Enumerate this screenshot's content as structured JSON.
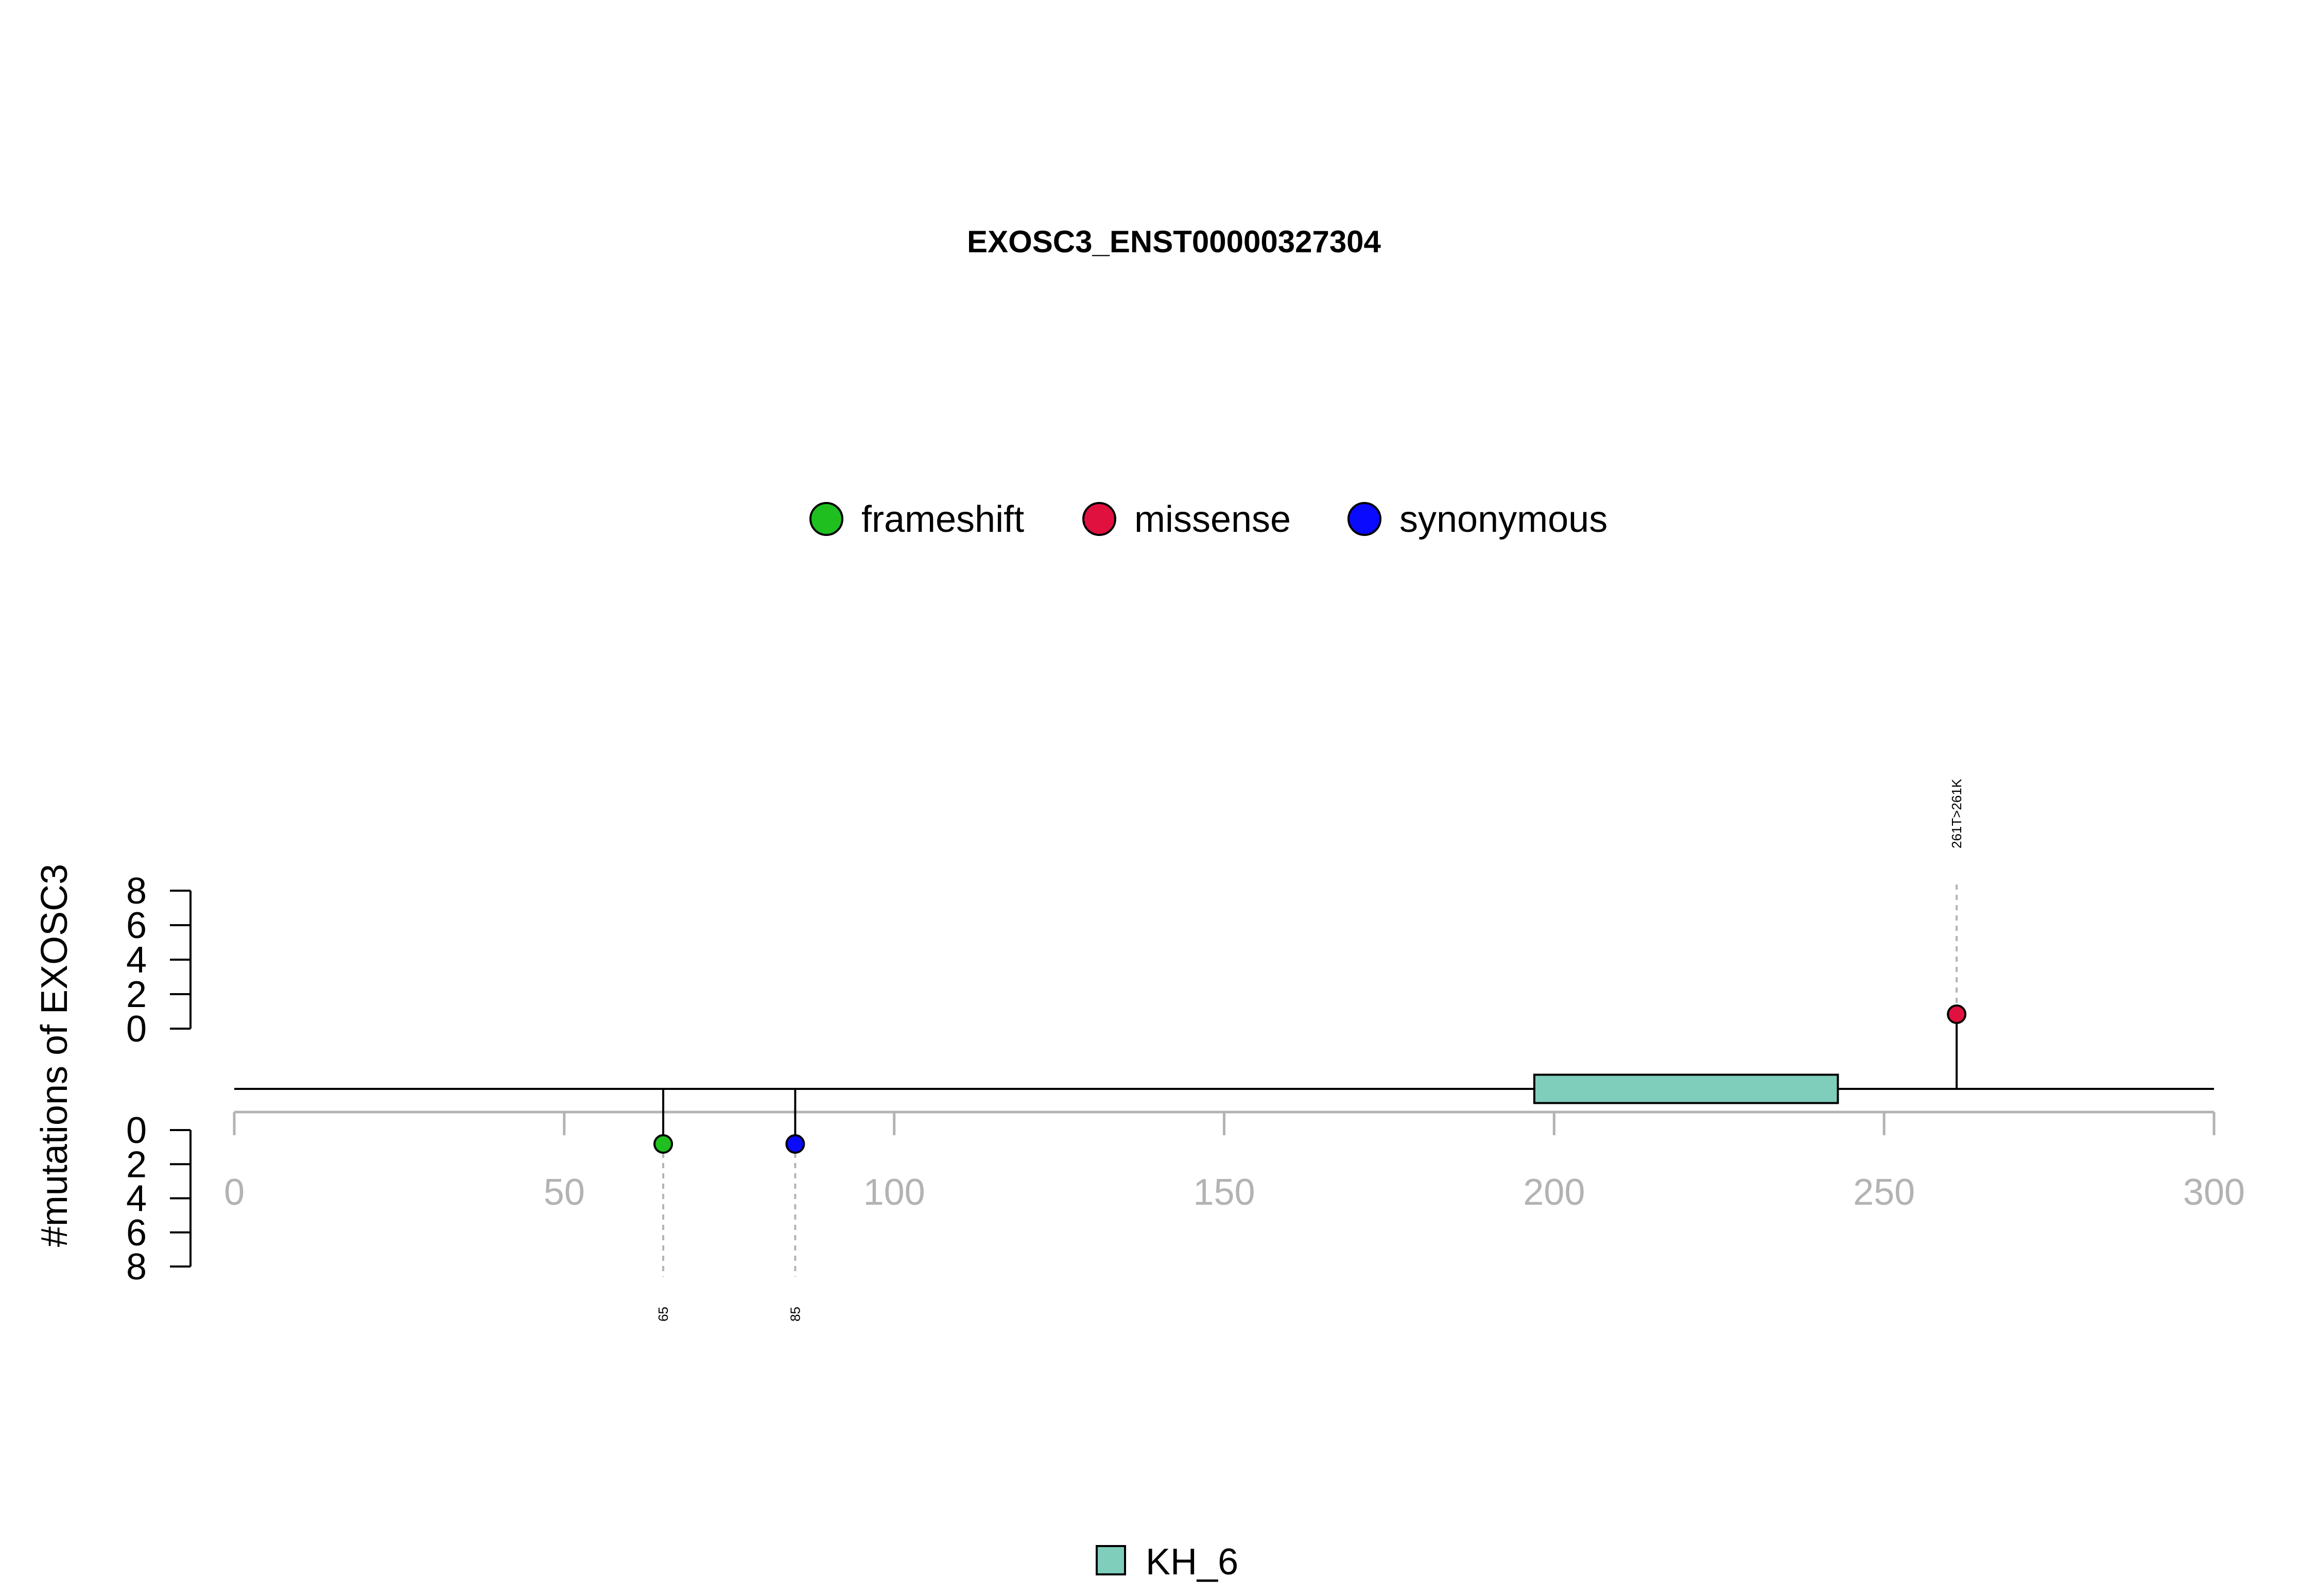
{
  "chart_data": {
    "type": "lollipop",
    "title": "EXOSC3_ENST00000327304",
    "ylabel": "#mutations of EXOSC3",
    "xlim": [
      0,
      300
    ],
    "x_ticks": [
      0,
      50,
      100,
      150,
      200,
      250,
      300
    ],
    "x_tick_labels": [
      "0",
      "50",
      "100",
      "150",
      "200",
      "250",
      "300"
    ],
    "y_ticks": [
      0,
      2,
      4,
      6,
      8
    ],
    "y_tick_labels": [
      "0",
      "2",
      "4",
      "6",
      "8"
    ],
    "ylim": [
      0,
      8
    ],
    "legend": [
      {
        "label": "frameshift",
        "color": "#1fbf1f"
      },
      {
        "label": "missense",
        "color": "#e0103f"
      },
      {
        "label": "synonymous",
        "color": "#0a0aff"
      }
    ],
    "mutations": [
      {
        "position": 65,
        "label": "65",
        "type": "frameshift",
        "count": 1,
        "side": "bottom",
        "color": "#1fbf1f"
      },
      {
        "position": 85,
        "label": "85",
        "type": "synonymous",
        "count": 1,
        "side": "bottom",
        "color": "#0a0aff"
      },
      {
        "position": 261,
        "label": "261T>261K",
        "type": "missense",
        "count": 1,
        "side": "top",
        "color": "#e0103f"
      }
    ],
    "domains": [
      {
        "name": "KH_6",
        "start": 197,
        "end": 243,
        "color": "#7fcdbb"
      }
    ],
    "domain_legend": [
      {
        "label": "KH_6",
        "color": "#7fcdbb"
      }
    ]
  }
}
